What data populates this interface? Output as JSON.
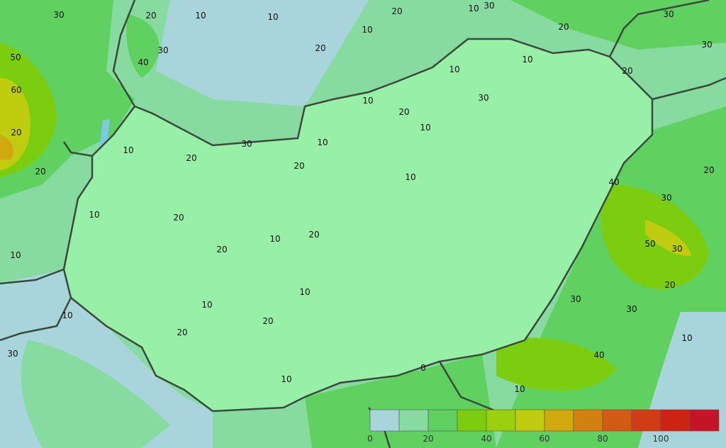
{
  "map": {
    "colors": {
      "outside": [
        "#a8d5dc",
        "#88dba0",
        "#60d060",
        "#7ccd10",
        "#9ad010",
        "#c0cc10",
        "#d0a810"
      ],
      "inside": [
        "#b8f0e0",
        "#98f0a8",
        "#70ec68",
        "#8ce810",
        "#a0ec10"
      ],
      "border": "#3a4a3a"
    },
    "contour_labels": [
      "30",
      "20",
      "10",
      "10",
      "20",
      "10",
      "30",
      "20",
      "40",
      "30",
      "50",
      "20",
      "60",
      "10",
      "20",
      "30",
      "30",
      "20",
      "10",
      "10",
      "10",
      "30",
      "20",
      "10",
      "20",
      "10",
      "20",
      "10",
      "30",
      "20",
      "20",
      "10",
      "10",
      "20",
      "10",
      "40",
      "30",
      "50",
      "30",
      "20",
      "20",
      "30",
      "10",
      "40",
      "30",
      "20",
      "10",
      "20",
      "10",
      "10",
      "20",
      "10",
      "30",
      "10",
      "0",
      "10"
    ]
  },
  "legend": {
    "ticks": [
      "0",
      "20",
      "40",
      "60",
      "80",
      "100"
    ],
    "bins": [
      {
        "from": 0,
        "to": 10,
        "color": "#a8d5dc"
      },
      {
        "from": 10,
        "to": 20,
        "color": "#88dba0"
      },
      {
        "from": 20,
        "to": 30,
        "color": "#60d060"
      },
      {
        "from": 30,
        "to": 40,
        "color": "#7ccd10"
      },
      {
        "from": 40,
        "to": 50,
        "color": "#9ad010"
      },
      {
        "from": 50,
        "to": 60,
        "color": "#c0cc10"
      },
      {
        "from": 60,
        "to": 70,
        "color": "#d0a810"
      },
      {
        "from": 70,
        "to": 80,
        "color": "#d28010"
      },
      {
        "from": 80,
        "to": 90,
        "color": "#d25c14"
      },
      {
        "from": 90,
        "to": 100,
        "color": "#d03c14"
      },
      {
        "from": 100,
        "to": 110,
        "color": "#cc2414"
      },
      {
        "from": 110,
        "to": 120,
        "color": "#c41428"
      }
    ]
  }
}
